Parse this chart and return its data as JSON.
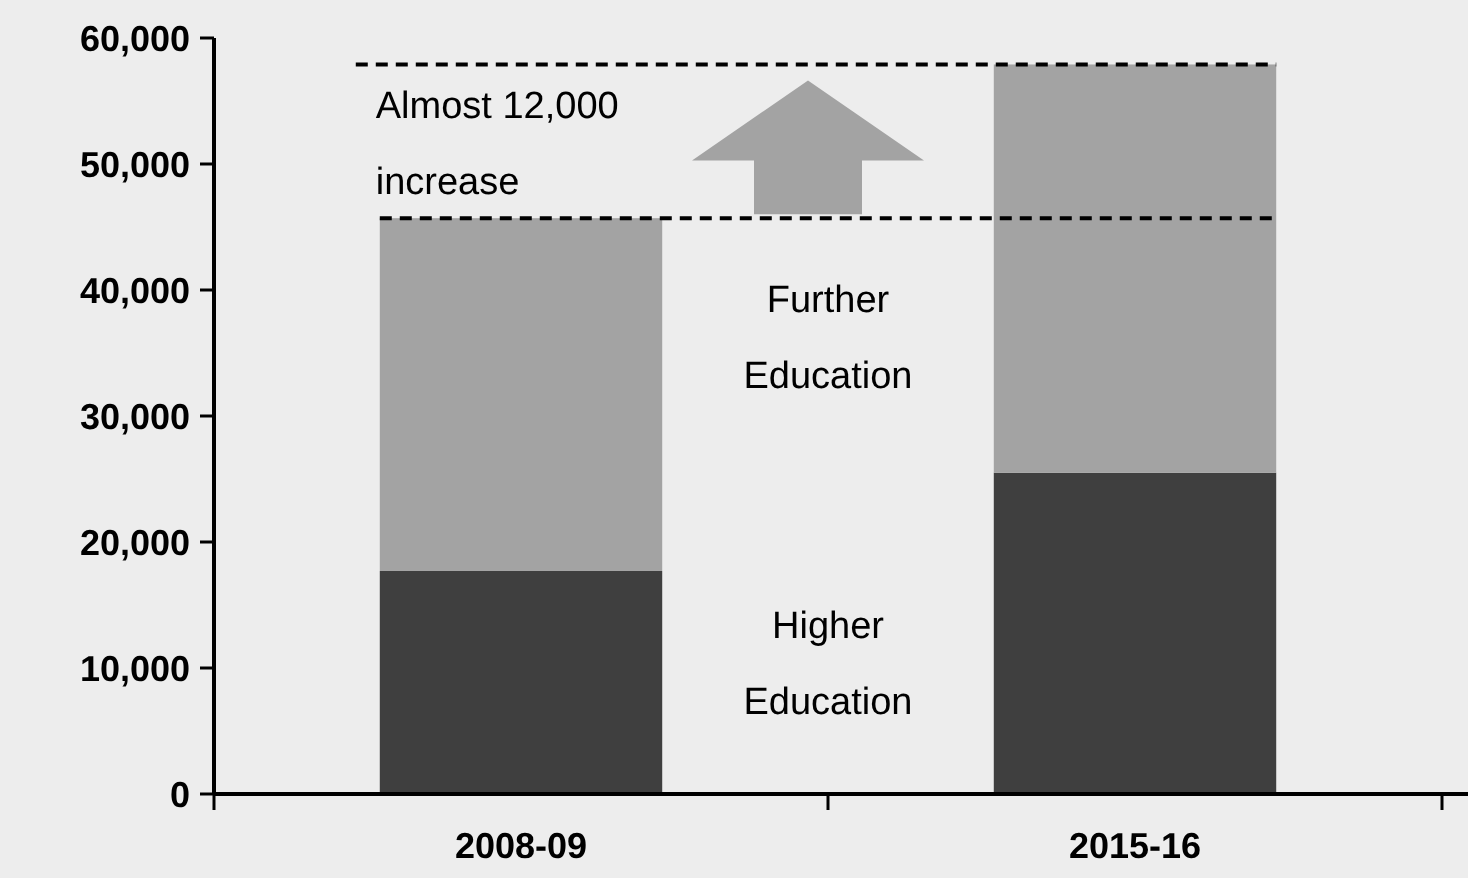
{
  "chart_data": {
    "type": "bar",
    "stacked": true,
    "categories": [
      "2008-09",
      "2015-16"
    ],
    "series": [
      {
        "name": "Higher Education",
        "color": "#3f3f3f",
        "values": [
          17700,
          25500
        ]
      },
      {
        "name": "Further Education",
        "color": "#a3a3a3",
        "values": [
          28000,
          32400
        ]
      }
    ],
    "ylim": [
      0,
      60000
    ],
    "yticks": [
      {
        "value": 0,
        "label": "0"
      },
      {
        "value": 10000,
        "label": "10,000"
      },
      {
        "value": 20000,
        "label": "20,000"
      },
      {
        "value": 30000,
        "label": "30,000"
      },
      {
        "value": 40000,
        "label": "40,000"
      },
      {
        "value": 50000,
        "label": "50,000"
      },
      {
        "value": 60000,
        "label": "60,000"
      }
    ],
    "ref_lines": [
      {
        "axis": "y",
        "value": 45700,
        "line_style": "dashed",
        "color": "#000000"
      },
      {
        "axis": "y",
        "value": 57900,
        "line_style": "dashed",
        "color": "#000000"
      }
    ],
    "annotations": [
      "Almost 12,000 increase"
    ],
    "grid": false
  }
}
